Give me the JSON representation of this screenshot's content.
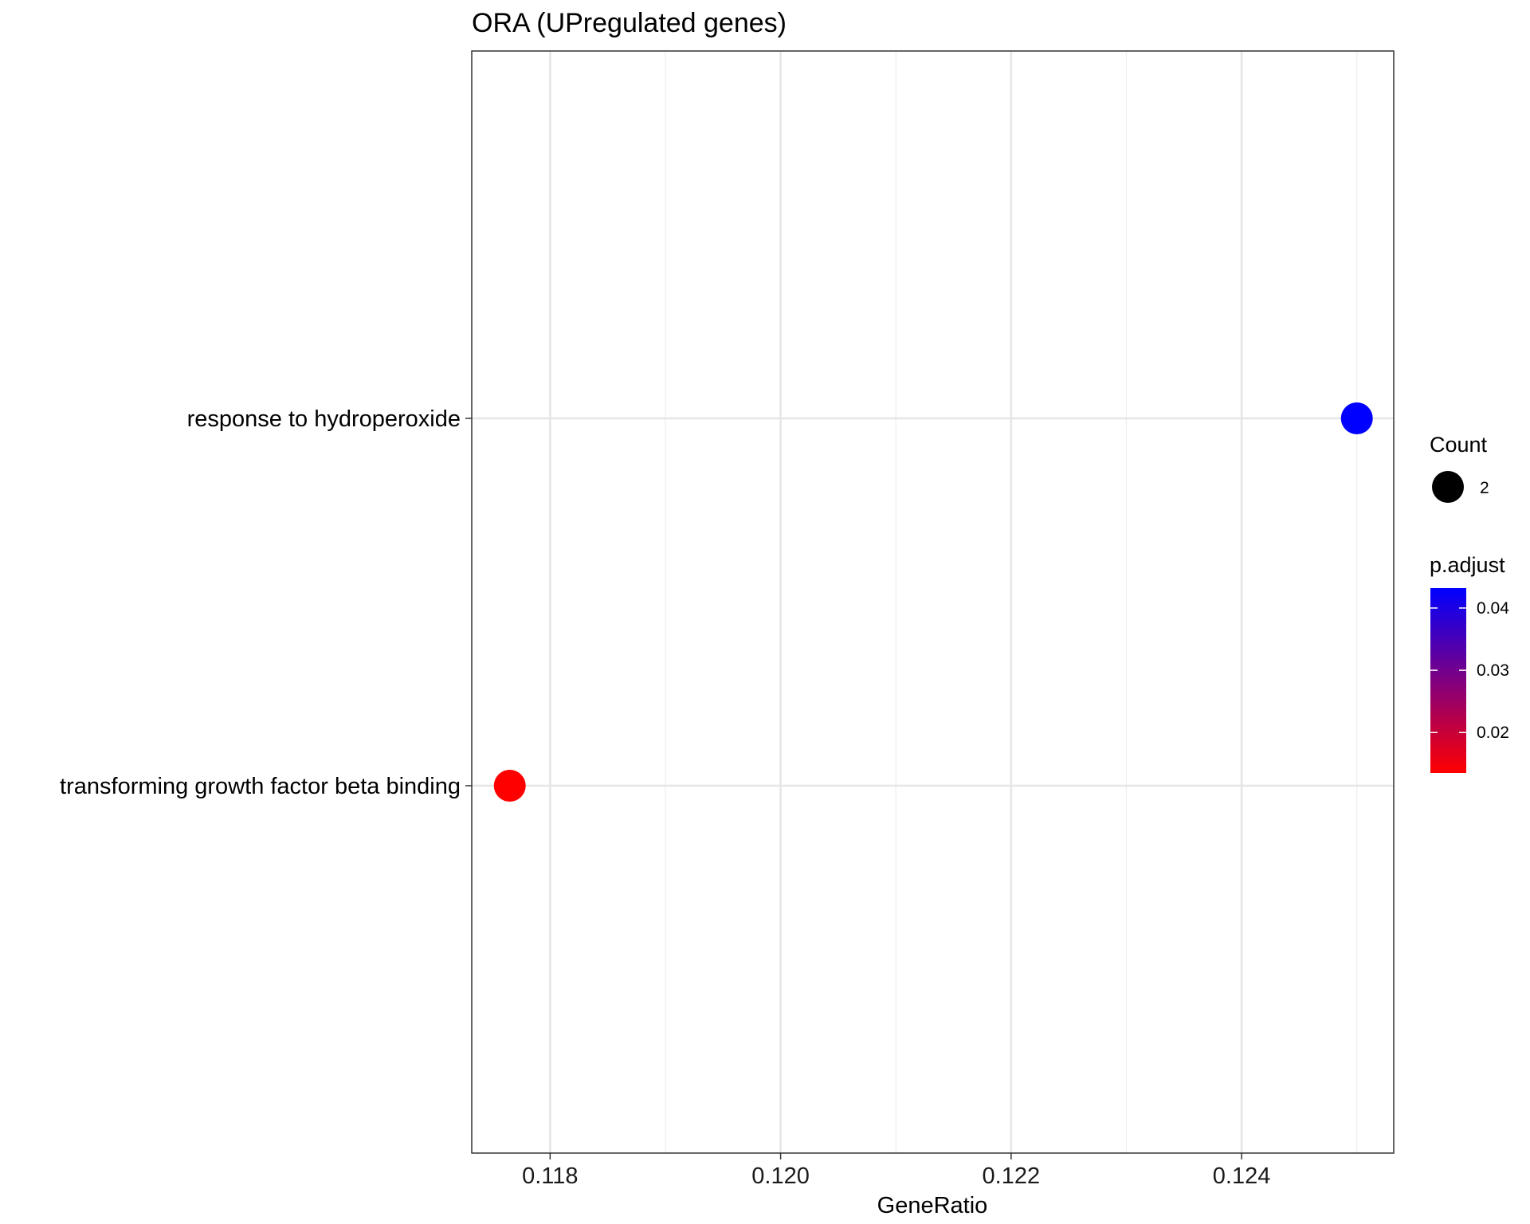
{
  "chart_data": {
    "type": "scatter",
    "title": "ORA (UPregulated genes)",
    "xlabel": "GeneRatio",
    "ylabel": "",
    "xlim": [
      0.11732,
      0.12532
    ],
    "x_ticks": [
      0.118,
      0.12,
      0.122,
      0.124
    ],
    "x_tick_labels": [
      "0.118",
      "0.120",
      "0.122",
      "0.124"
    ],
    "categories": [
      "response to hydroperoxide",
      "transforming growth factor beta binding"
    ],
    "points": [
      {
        "term": "response to hydroperoxide",
        "gene_ratio": 0.125,
        "count": 2,
        "p_adjust": 0.0432,
        "color": "#0000ff"
      },
      {
        "term": "transforming growth factor beta binding",
        "gene_ratio": 0.11765,
        "count": 2,
        "p_adjust": 0.0135,
        "color": "#ff0000"
      }
    ],
    "grid": true,
    "legend": {
      "placement": "right",
      "size": {
        "title": "Count",
        "values": [
          2
        ],
        "labels": [
          "2"
        ]
      },
      "color": {
        "title": "p.adjust",
        "range": [
          0.0135,
          0.0432
        ],
        "ticks": [
          0.02,
          0.03,
          0.04
        ],
        "tick_labels": [
          "0.02",
          "0.03",
          "0.04"
        ],
        "low_color": "#ff0000",
        "high_color": "#0000ff"
      }
    }
  }
}
